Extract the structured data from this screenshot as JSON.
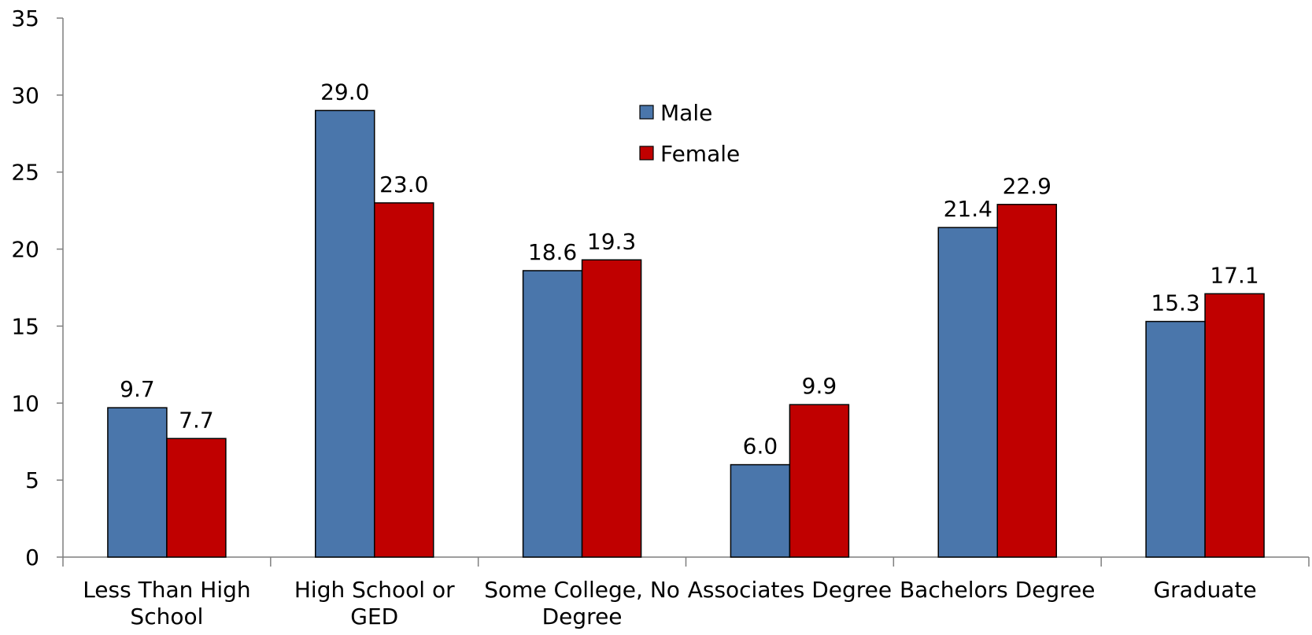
{
  "chart_data": {
    "type": "bar",
    "categories": [
      [
        "Less Than High",
        "School"
      ],
      [
        "High School or",
        "GED"
      ],
      [
        "Some College, No",
        "Degree"
      ],
      [
        "Associates Degree"
      ],
      [
        "Bachelors Degree"
      ],
      [
        "Graduate"
      ]
    ],
    "series": [
      {
        "name": "Male",
        "color": "#4a76ab",
        "values": [
          9.7,
          29.0,
          18.6,
          6.0,
          21.4,
          15.3
        ]
      },
      {
        "name": "Female",
        "color": "#c00000",
        "values": [
          7.7,
          23.0,
          19.3,
          9.9,
          22.9,
          17.1
        ]
      }
    ],
    "ylim": [
      0,
      35
    ],
    "yticks": [
      0,
      5,
      10,
      15,
      20,
      25,
      30,
      35
    ],
    "grid": false,
    "legend_position": "top-center",
    "title": "",
    "xlabel": "",
    "ylabel": ""
  }
}
